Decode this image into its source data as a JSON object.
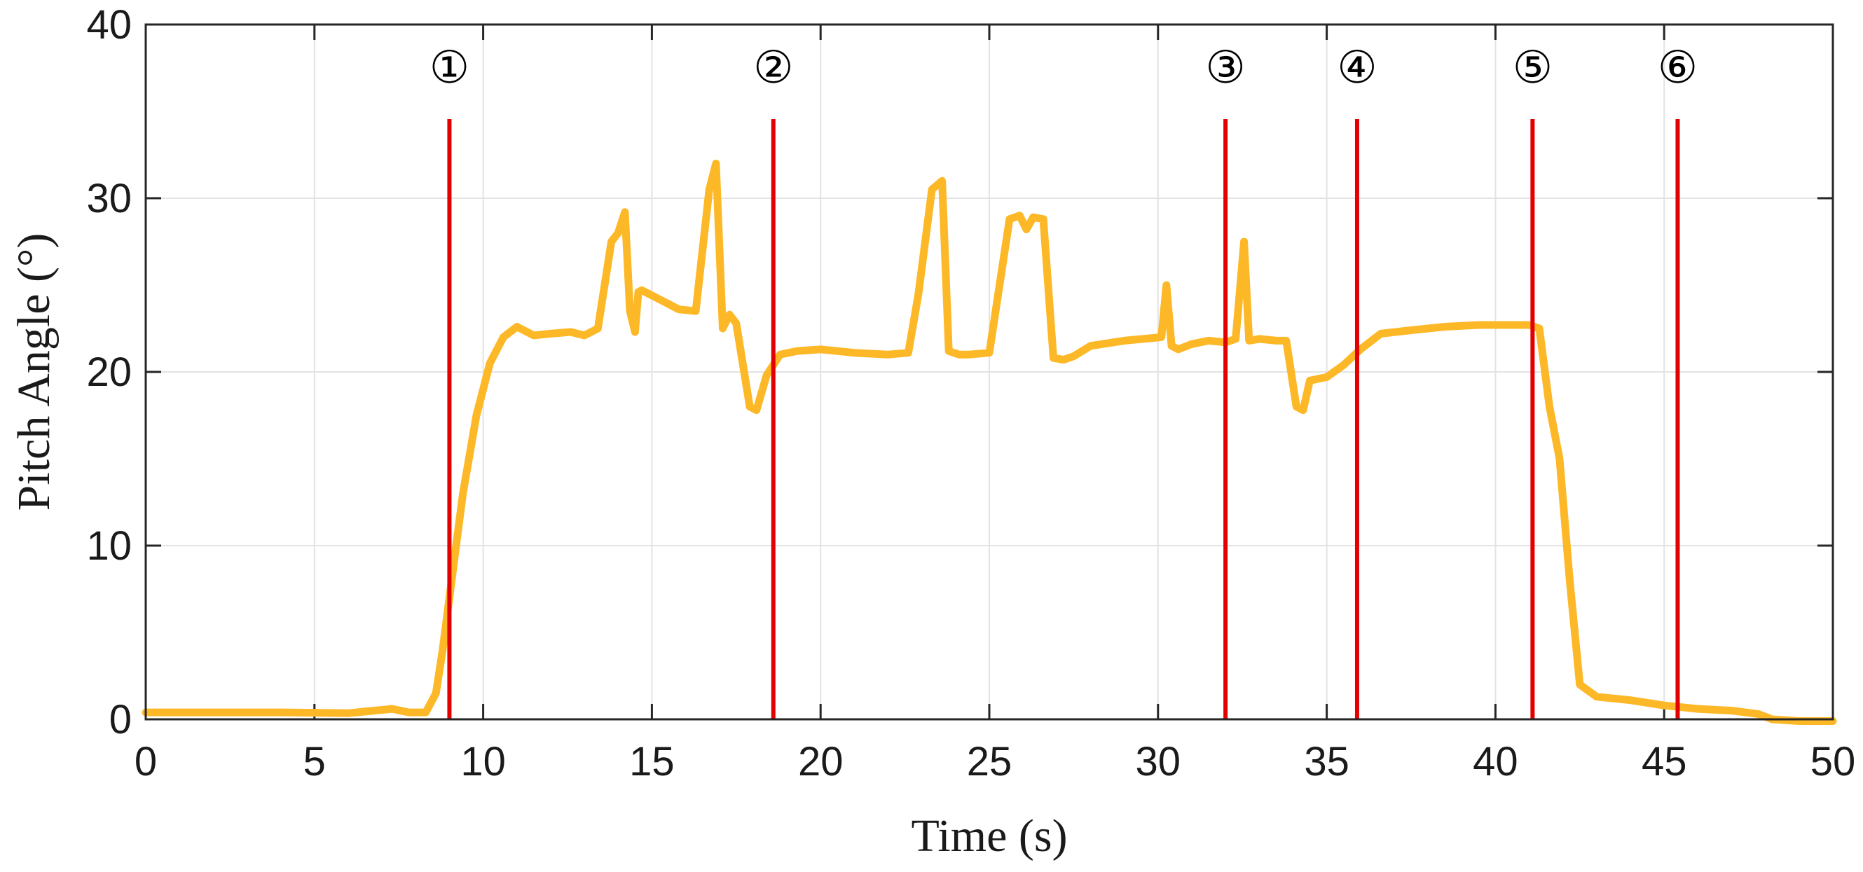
{
  "chart_data": {
    "type": "line",
    "title": "",
    "xlabel": "Time (s)",
    "ylabel": "Pitch Angle (°)",
    "xlim": [
      0,
      50
    ],
    "ylim": [
      0,
      40
    ],
    "xticks": [
      "0",
      "5",
      "10",
      "15",
      "20",
      "25",
      "30",
      "35",
      "40",
      "45",
      "50"
    ],
    "yticks": [
      "0",
      "10",
      "20",
      "30",
      "40"
    ],
    "grid": true,
    "series": [
      {
        "color": "#FDB827",
        "x": [
          0,
          2,
          4,
          6,
          7.3,
          7.8,
          8.3,
          8.6,
          8.8,
          9.0,
          9.4,
          9.8,
          10.2,
          10.6,
          11.0,
          11.5,
          12.0,
          12.6,
          13.0,
          13.4,
          13.8,
          14.0,
          14.2,
          14.35,
          14.5,
          14.6,
          14.7,
          15.2,
          15.8,
          16.3,
          16.7,
          16.9,
          17.1,
          17.3,
          17.5,
          17.9,
          18.1,
          18.4,
          18.8,
          19.3,
          20,
          21,
          22,
          22.6,
          22.9,
          23.3,
          23.6,
          23.8,
          24.1,
          24.4,
          25,
          25.6,
          25.9,
          26.1,
          26.3,
          26.6,
          26.9,
          27.2,
          27.5,
          28,
          29,
          30.1,
          30.25,
          30.4,
          30.6,
          31,
          31.5,
          32.0,
          32.3,
          32.55,
          32.7,
          33.0,
          33.5,
          33.8,
          34.1,
          34.3,
          34.5,
          35.0,
          35.5,
          36.0,
          36.6,
          37.5,
          38.5,
          39.5,
          40.5,
          41.0,
          41.3,
          41.6,
          41.9,
          42.2,
          42.5,
          43,
          44,
          45,
          46,
          47,
          47.8,
          48.2,
          49,
          50
        ],
        "y": [
          0.4,
          0.4,
          0.4,
          0.35,
          0.6,
          0.4,
          0.4,
          1.5,
          4,
          7,
          13,
          17.5,
          20.5,
          22.0,
          22.6,
          22.1,
          22.2,
          22.3,
          22.1,
          22.5,
          27.5,
          28,
          29.2,
          23.5,
          22.3,
          24.6,
          24.7,
          24.2,
          23.6,
          23.5,
          30.5,
          32.0,
          22.5,
          23.3,
          22.8,
          18.0,
          17.8,
          19.8,
          21.0,
          21.2,
          21.3,
          21.1,
          21.0,
          21.1,
          24.5,
          30.5,
          31.0,
          21.2,
          21.0,
          21.0,
          21.1,
          28.8,
          29.0,
          28.2,
          28.9,
          28.8,
          20.8,
          20.7,
          20.9,
          21.5,
          21.8,
          22.0,
          25.0,
          21.5,
          21.3,
          21.6,
          21.8,
          21.7,
          21.9,
          27.5,
          21.8,
          21.9,
          21.8,
          21.8,
          18.0,
          17.8,
          19.5,
          19.7,
          20.4,
          21.3,
          22.2,
          22.4,
          22.6,
          22.7,
          22.7,
          22.7,
          22.5,
          18.0,
          15.0,
          8.0,
          2.0,
          1.3,
          1.1,
          0.8,
          0.6,
          0.5,
          0.3,
          0.0,
          -0.1,
          -0.1
        ]
      }
    ],
    "markers": [
      {
        "label": "①",
        "x": 9.0,
        "color": "#E30000"
      },
      {
        "label": "②",
        "x": 18.6,
        "color": "#E30000"
      },
      {
        "label": "③",
        "x": 32.0,
        "color": "#E30000"
      },
      {
        "label": "④",
        "x": 35.9,
        "color": "#E30000"
      },
      {
        "label": "⑤",
        "x": 41.1,
        "color": "#E30000"
      },
      {
        "label": "⑥",
        "x": 45.4,
        "color": "#E30000"
      }
    ]
  }
}
